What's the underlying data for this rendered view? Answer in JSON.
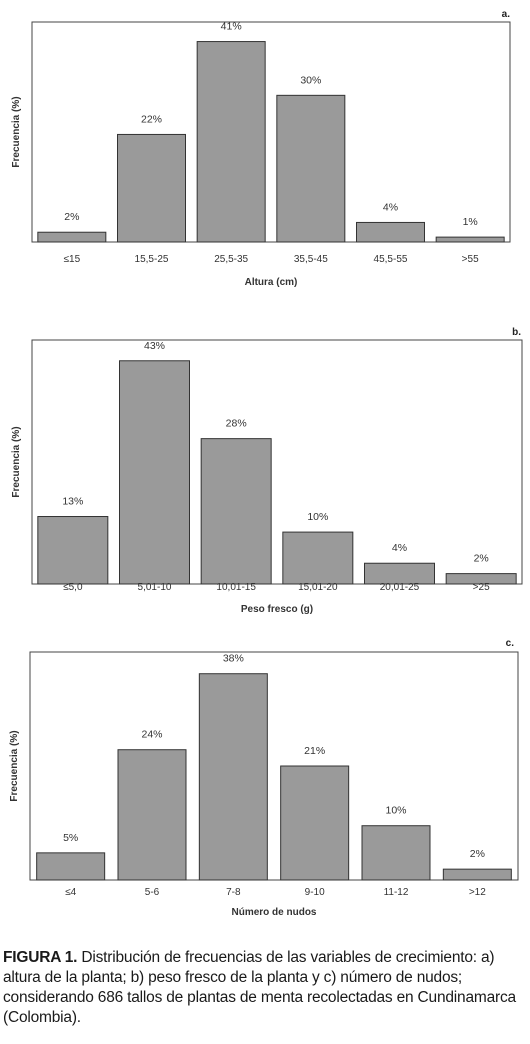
{
  "chart_data": [
    {
      "type": "bar",
      "panel_label": "a.",
      "categories": [
        "≤15",
        "15,5-25",
        "25,5-35",
        "35,5-45",
        "45,5-55",
        ">55"
      ],
      "values": [
        2,
        22,
        41,
        30,
        4,
        1
      ],
      "data_labels": [
        "2%",
        "22%",
        "41%",
        "30%",
        "4%",
        "1%"
      ],
      "xlabel": "Altura (cm)",
      "ylabel": "Frecuencia (%)",
      "ylim": [
        0,
        45
      ],
      "bar_color": "#9a9a9a",
      "grid": false
    },
    {
      "type": "bar",
      "panel_label": "b.",
      "categories": [
        "≤5,0",
        "5,01-10",
        "10,01-15",
        "15,01-20",
        "20,01-25",
        ">25"
      ],
      "values": [
        13,
        43,
        28,
        10,
        4,
        2
      ],
      "data_labels": [
        "13%",
        "43%",
        "28%",
        "10%",
        "4%",
        "2%"
      ],
      "xlabel": "Peso fresco (g)",
      "ylabel": "Frecuencia (%)",
      "ylim": [
        0,
        47
      ],
      "bar_color": "#9a9a9a",
      "grid": false
    },
    {
      "type": "bar",
      "panel_label": "c.",
      "categories": [
        "≤4",
        "5-6",
        "7-8",
        "9-10",
        "11-12",
        ">12"
      ],
      "values": [
        5,
        24,
        38,
        21,
        10,
        2
      ],
      "data_labels": [
        "5%",
        "24%",
        "38%",
        "21%",
        "10%",
        "2%"
      ],
      "xlabel": "Número de nudos",
      "ylabel": "Frecuencia (%)",
      "ylim": [
        0,
        42
      ],
      "bar_color": "#9a9a9a",
      "grid": false
    }
  ],
  "caption": {
    "label": "FIGURA 1.",
    "text": " Distribución de frecuencias de las variables de crecimiento: a) altura de la planta; b) peso fresco de la planta y c) número de nudos; considerando 686 tallos de plantas de menta recolectadas en Cundinamarca (Colombia)."
  }
}
